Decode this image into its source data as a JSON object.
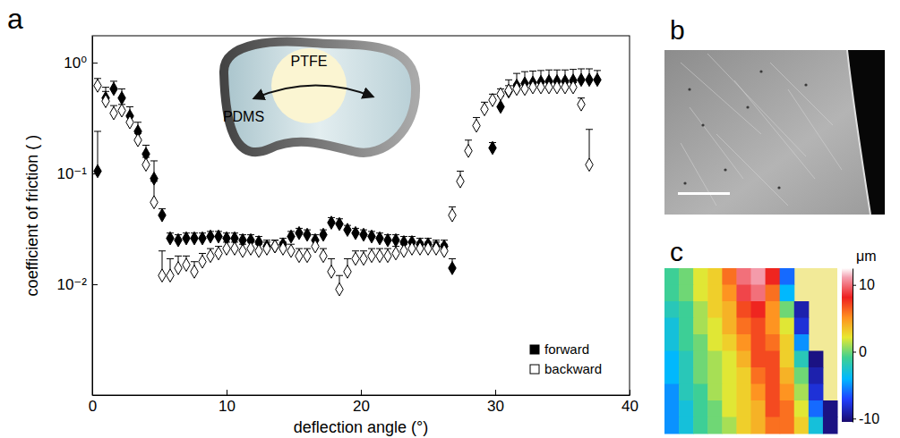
{
  "chart_data": [
    {
      "type": "scatter",
      "panel": "a",
      "xlabel": "deflection angle (°)",
      "ylabel": "coefficient of friction ( )",
      "annotations": [
        "PTFE",
        "PDMS"
      ],
      "x": [
        0.4,
        1.0,
        1.6,
        2.2,
        2.8,
        3.4,
        4.0,
        4.6,
        5.2,
        5.8,
        6.4,
        7.0,
        7.6,
        8.2,
        8.8,
        9.4,
        10.0,
        10.6,
        11.2,
        11.8,
        12.4,
        13.0,
        13.6,
        14.2,
        14.8,
        15.4,
        16.0,
        16.6,
        17.2,
        17.8,
        18.4,
        19.0,
        19.6,
        20.2,
        20.8,
        21.4,
        22.0,
        22.6,
        23.2,
        23.8,
        24.4,
        25.0,
        25.6,
        26.2,
        26.8,
        27.4,
        28.0,
        28.6,
        29.2,
        29.8,
        30.4,
        31.0,
        31.6,
        32.2,
        32.8,
        33.4,
        34.0,
        34.6,
        35.2,
        35.8,
        36.4,
        37.0,
        37.6
      ],
      "series": [
        {
          "name": "forward",
          "color": "#000000",
          "marker": "diamond",
          "values": [
            0.105,
            0.48,
            0.58,
            0.48,
            0.33,
            0.24,
            0.15,
            0.09,
            0.042,
            0.026,
            0.025,
            0.026,
            0.026,
            0.026,
            0.027,
            0.027,
            0.026,
            0.026,
            0.025,
            0.025,
            0.024,
            0.022,
            0.022,
            0.023,
            0.027,
            0.029,
            0.028,
            0.025,
            0.028,
            0.036,
            0.035,
            0.031,
            0.029,
            0.028,
            0.027,
            0.026,
            0.025,
            0.025,
            0.024,
            0.024,
            0.023,
            0.023,
            0.022,
            0.022,
            0.014,
            null,
            null,
            null,
            null,
            0.17,
            0.4,
            0.55,
            0.62,
            0.65,
            0.66,
            0.67,
            0.68,
            0.68,
            0.68,
            0.69,
            0.7,
            0.7,
            0.7
          ],
          "errors": [
            0.135,
            0.12,
            0.1,
            0.1,
            0.07,
            0.05,
            0.03,
            0.04,
            0.006,
            0.003,
            0.003,
            0.003,
            0.003,
            0.003,
            0.003,
            0.003,
            0.003,
            0.003,
            0.003,
            0.003,
            0.003,
            0.003,
            0.003,
            0.003,
            0.003,
            0.003,
            0.003,
            0.003,
            0.003,
            0.004,
            0.004,
            0.003,
            0.003,
            0.003,
            0.003,
            0.003,
            0.003,
            0.003,
            0.003,
            0.003,
            0.003,
            0.003,
            0.003,
            0.003,
            0.003,
            null,
            null,
            null,
            null,
            0.02,
            0.1,
            0.15,
            0.18,
            0.18,
            0.18,
            0.18,
            0.18,
            0.18,
            0.18,
            0.18,
            0.18,
            0.18,
            0.15
          ]
        },
        {
          "name": "backward",
          "color": "#000000",
          "marker": "open-diamond",
          "values": [
            0.62,
            0.45,
            0.35,
            0.37,
            0.29,
            0.2,
            0.12,
            0.055,
            0.012,
            0.012,
            0.014,
            0.015,
            0.013,
            0.016,
            0.018,
            0.019,
            0.021,
            0.021,
            0.02,
            0.021,
            0.02,
            0.021,
            0.022,
            0.021,
            0.02,
            0.018,
            0.018,
            0.022,
            0.018,
            0.013,
            0.009,
            0.013,
            0.017,
            0.017,
            0.018,
            0.018,
            0.018,
            0.019,
            0.02,
            0.021,
            0.021,
            0.021,
            0.021,
            0.02,
            0.042,
            0.085,
            0.16,
            0.27,
            0.38,
            0.46,
            0.52,
            0.56,
            0.58,
            0.58,
            0.6,
            0.6,
            0.6,
            0.6,
            0.6,
            0.6,
            0.42,
            0.12,
            null
          ],
          "errors": [
            0.1,
            0.1,
            0.06,
            0.05,
            0.04,
            0.03,
            0.02,
            0.03,
            0.008,
            0.005,
            0.004,
            0.003,
            0.003,
            0.003,
            0.003,
            0.003,
            0.003,
            0.003,
            0.003,
            0.003,
            0.003,
            0.003,
            0.003,
            0.003,
            0.003,
            0.003,
            0.003,
            0.003,
            0.003,
            0.004,
            0.003,
            0.004,
            0.003,
            0.003,
            0.003,
            0.003,
            0.003,
            0.003,
            0.003,
            0.003,
            0.003,
            0.003,
            0.003,
            0.003,
            0.008,
            0.02,
            0.04,
            0.05,
            0.06,
            0.06,
            0.06,
            0.06,
            0.06,
            0.06,
            0.06,
            0.06,
            0.06,
            0.06,
            0.06,
            0.06,
            0.06,
            0.13,
            null
          ]
        }
      ],
      "xlim": [
        0,
        40
      ],
      "xticks": [
        0,
        10,
        20,
        30,
        40
      ],
      "ylim": [
        0.001,
        1.75
      ],
      "yticks": [
        {
          "value": 1,
          "label": "10⁰"
        },
        {
          "value": 0.1,
          "label": "10⁻¹"
        },
        {
          "value": 0.01,
          "label": "10⁻²"
        }
      ],
      "log": "y",
      "legend": "lower right"
    },
    {
      "type": "image",
      "panel": "b"
    },
    {
      "type": "heatmap",
      "panel": "c",
      "z": [
        [
          -1,
          0,
          2,
          3,
          6,
          10,
          11,
          8,
          -6,
          null,
          null,
          null
        ],
        [
          -1,
          0,
          2,
          3,
          5,
          9,
          10,
          6,
          -4,
          null,
          null,
          null
        ],
        [
          -2,
          -1,
          1,
          3,
          4,
          7,
          8,
          5,
          0,
          -9,
          null,
          null
        ],
        [
          -3,
          -1,
          1,
          2,
          4,
          6,
          7,
          5,
          2,
          -8,
          null,
          null
        ],
        [
          -3,
          -1,
          0,
          2,
          3,
          5,
          7,
          6,
          3,
          -5,
          null,
          null
        ],
        [
          -4,
          -2,
          0,
          1,
          2,
          4,
          7,
          7,
          3,
          -2,
          -10,
          null
        ],
        [
          -4,
          -2,
          0,
          1,
          2,
          3,
          6,
          7,
          4,
          0,
          -9,
          null
        ],
        [
          -5,
          -2,
          -1,
          1,
          2,
          3,
          5,
          7,
          5,
          1,
          -8,
          null
        ],
        [
          -5,
          -3,
          -1,
          0,
          2,
          3,
          4,
          7,
          6,
          2,
          -6,
          -10
        ],
        [
          -5,
          -3,
          -1,
          0,
          1,
          3,
          4,
          6,
          6,
          3,
          -3,
          -10
        ]
      ],
      "colorbar_lim": [
        -10.5,
        12.5
      ],
      "colorbar_ticks": [
        10,
        0,
        -10
      ],
      "colorbar_label": "μm"
    }
  ]
}
